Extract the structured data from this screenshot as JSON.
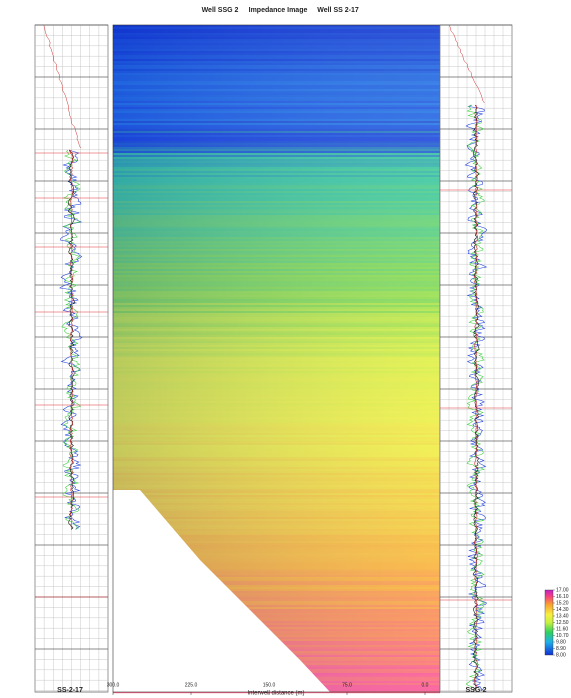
{
  "chart_data": {
    "type": "impedance-section",
    "title_left": "Well SSG 2",
    "title_center": "Impedance Image",
    "title_right": "Well SS 2-17",
    "left_well": "SS-2-17",
    "right_well": "SSG-2",
    "xlabel": "Interwell distance (m)",
    "xlim": [
      300,
      0
    ],
    "xticks": [
      {
        "value": 300,
        "label": "300.0"
      },
      {
        "value": 225,
        "label": "225.0"
      },
      {
        "value": 150,
        "label": "150.0"
      },
      {
        "value": 75,
        "label": "75.0"
      },
      {
        "value": 0,
        "label": "0.0"
      }
    ],
    "clim": [
      8,
      17
    ],
    "cticks": [
      {
        "value": 17,
        "label": "17.00"
      },
      {
        "value": 16.1,
        "label": "16.10"
      },
      {
        "value": 15.2,
        "label": "15.20"
      },
      {
        "value": 14.3,
        "label": "14.30"
      },
      {
        "value": 13.4,
        "label": "13.40"
      },
      {
        "value": 12.5,
        "label": "12.50"
      },
      {
        "value": 11.6,
        "label": "11.60"
      },
      {
        "value": 10.7,
        "label": "10.70"
      },
      {
        "value": 9.8,
        "label": "9.80"
      },
      {
        "value": 8.9,
        "label": "8.90"
      },
      {
        "value": 8,
        "label": "8.00"
      }
    ]
  }
}
